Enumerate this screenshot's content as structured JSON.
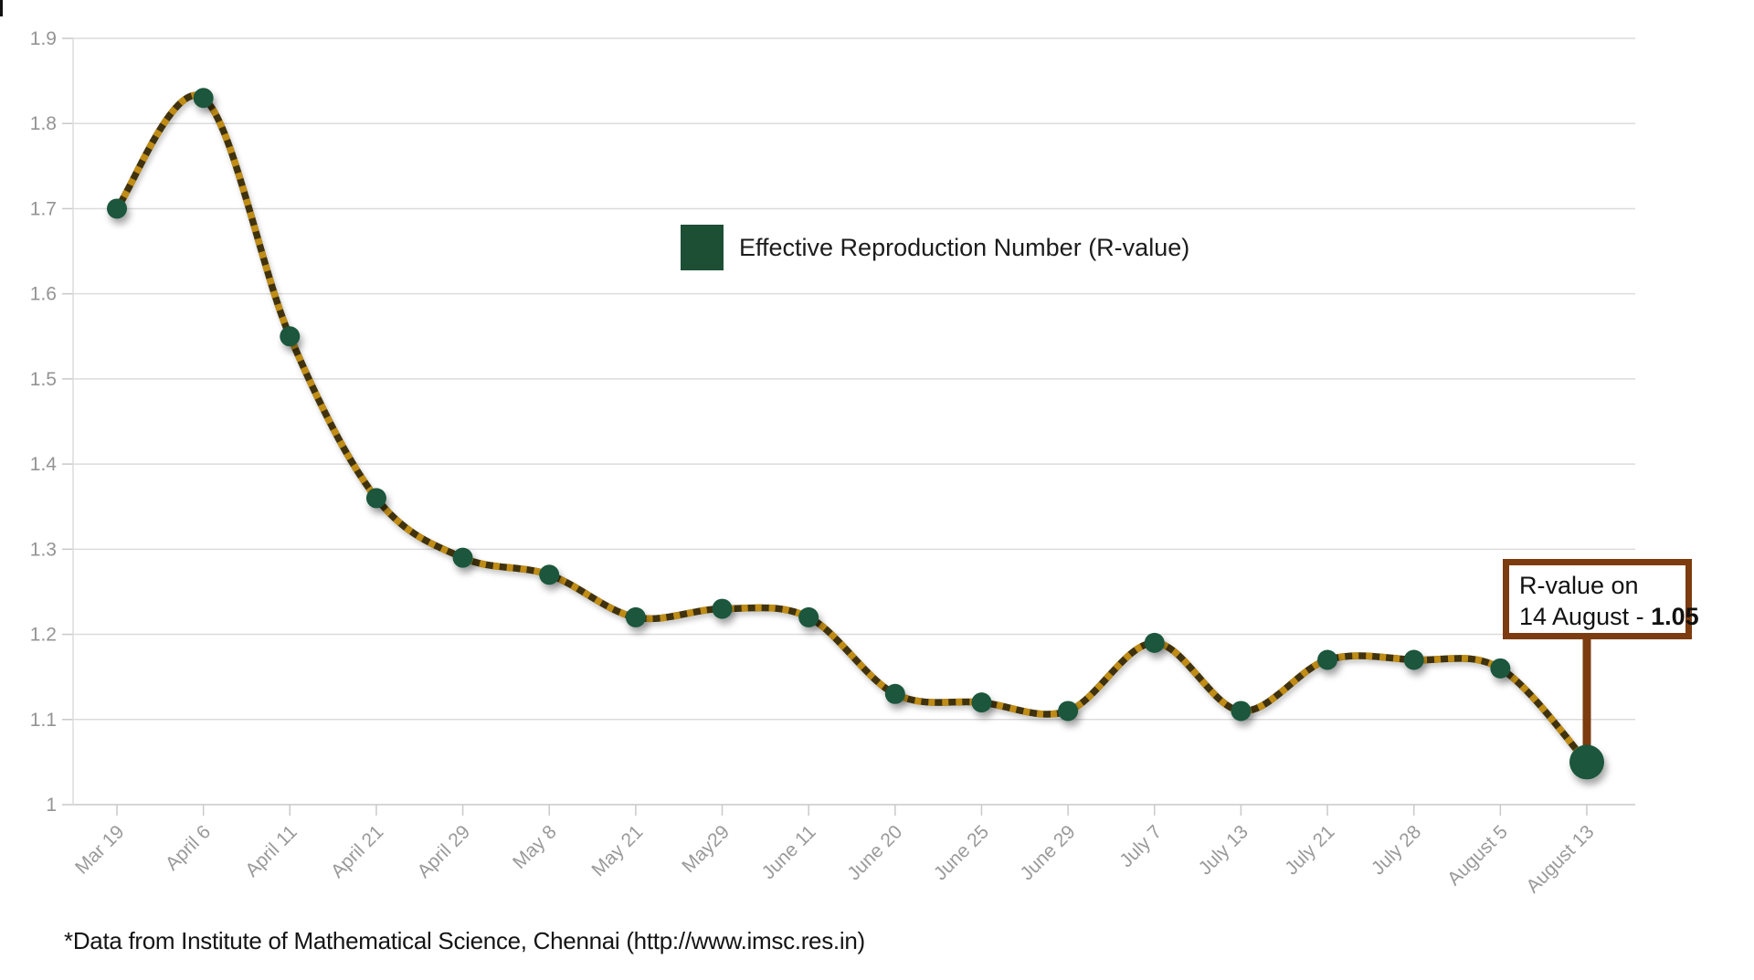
{
  "page": {
    "background": "#ffffff"
  },
  "legend": {
    "label": "Effective Reproduction Number (R-value)",
    "swatch_color": "#1d4f35"
  },
  "annotation": {
    "line1": "R-value on",
    "line2_prefix": "14 August - ",
    "line2_value": "1.05",
    "border_color": "#7c3c10"
  },
  "footer": {
    "text": "*Data from Institute of Mathematical Science, Chennai (http://www.imsc.res.in)"
  },
  "chart_data": {
    "type": "line",
    "title": "",
    "xlabel": "",
    "ylabel": "",
    "categories": [
      "Mar 19",
      "April 6",
      "April 11",
      "April 21",
      "April 29",
      "May 8",
      "May 21",
      "May29",
      "June 11",
      "June 20",
      "June 25",
      "June 29",
      "July 7",
      "July 13",
      "July 21",
      "July 28",
      "August 5",
      "August 13"
    ],
    "series": [
      {
        "name": "Effective Reproduction Number (R-value)",
        "values": [
          1.7,
          1.83,
          1.55,
          1.36,
          1.29,
          1.27,
          1.22,
          1.23,
          1.22,
          1.13,
          1.12,
          1.11,
          1.19,
          1.11,
          1.17,
          1.17,
          1.16,
          1.05
        ]
      }
    ],
    "ylim": [
      1.0,
      1.9
    ],
    "ytick_labels": [
      "1",
      "1.1",
      "1.2",
      "1.3",
      "1.4",
      "1.5",
      "1.6",
      "1.7",
      "1.8",
      "1.9"
    ],
    "grid": "horizontal-only",
    "legend_position": "inside-top-center",
    "highlight_last_point": true,
    "annotation_target_index": 17,
    "colors": {
      "marker_green": "#1a573c",
      "rope_dark": "#40300a",
      "rope_gold": "#bf8c12",
      "gridline": "#dcdcdc",
      "axis_line": "#c9c9c9",
      "tick_label": "#949494",
      "stem_brown": "#7c3c10"
    }
  }
}
